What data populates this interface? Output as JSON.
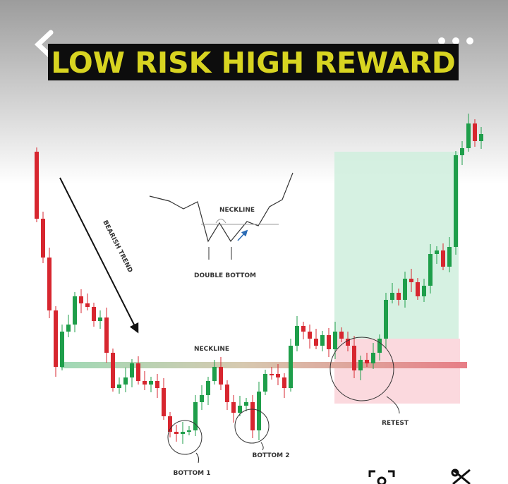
{
  "header": {
    "title": "LOW RISK HIGH REWARD"
  },
  "annotations": {
    "bearish_trend": "BEARISH TREND",
    "neckline": "NECKLINE",
    "inset_neckline": "NECKLINE",
    "double_bottom": "DOUBLE BOTTOM",
    "bottom_1": "BOTTOM 1",
    "bottom_2": "BOTTOM 2",
    "retest": "RETEST"
  }
}
